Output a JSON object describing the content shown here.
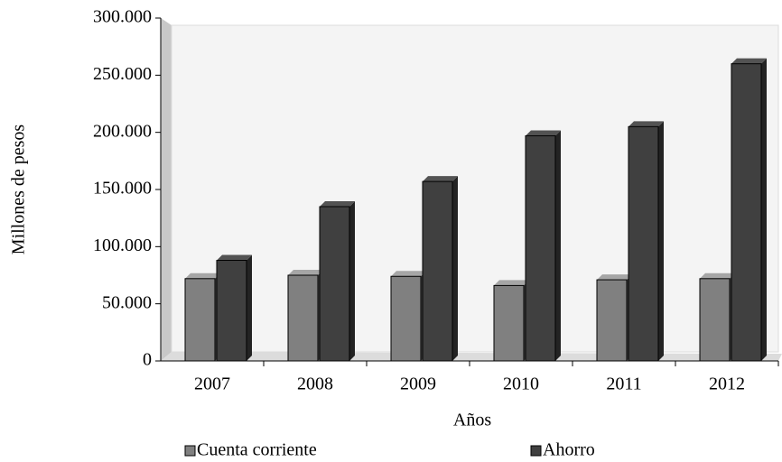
{
  "chart_data": {
    "type": "bar",
    "categories": [
      "2007",
      "2008",
      "2009",
      "2010",
      "2011",
      "2012"
    ],
    "series": [
      {
        "name": "Cuenta corriente",
        "color": "#808080",
        "values": [
          72000,
          75000,
          74000,
          66000,
          71000,
          72000
        ]
      },
      {
        "name": "Ahorro",
        "color": "#404040",
        "values": [
          88000,
          135000,
          157000,
          197000,
          205000,
          260000
        ]
      }
    ],
    "ylim": [
      0,
      300000
    ],
    "yticks": [
      0,
      {
        "value": 50000,
        "label": "50.000"
      },
      {
        "value": 100000,
        "label": "100.000"
      },
      {
        "value": 150000,
        "label": "150.000"
      },
      {
        "value": 200000,
        "label": "200.000"
      },
      {
        "value": 250000,
        "label": "250.000"
      },
      {
        "value": 300000,
        "label": "300.000"
      }
    ],
    "ylabel": "Millones de pesos",
    "xlabel": "Años",
    "legend": "bottom"
  }
}
